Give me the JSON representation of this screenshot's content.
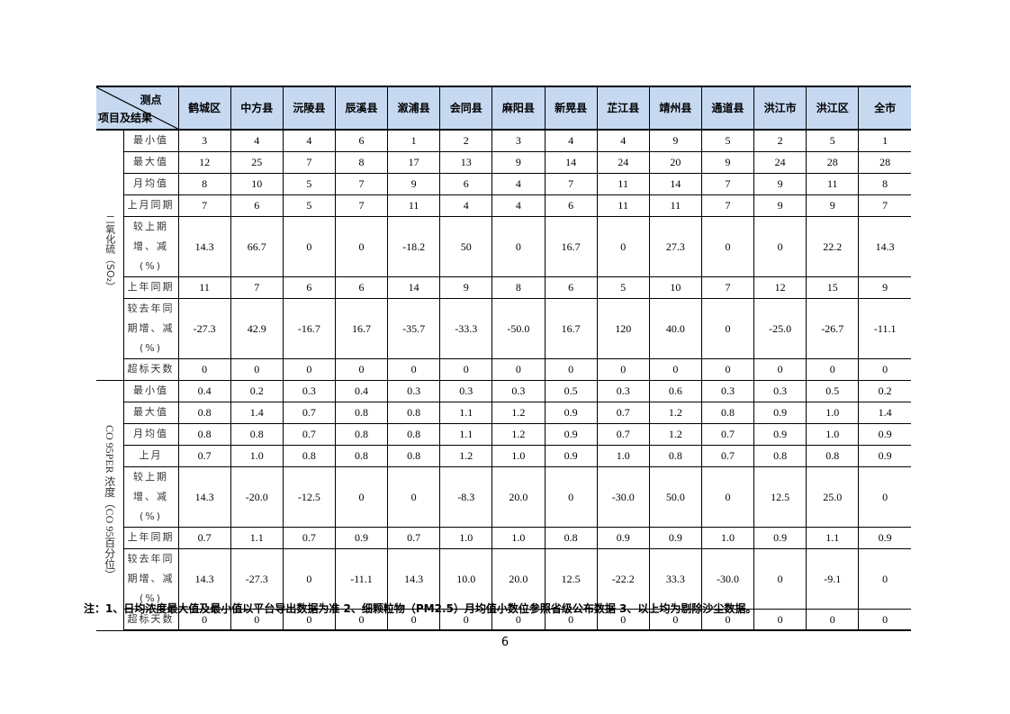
{
  "table": {
    "corner_top": "测点",
    "corner_bottom": "项目及结果",
    "columns": [
      "鹤城区",
      "中方县",
      "沅陵县",
      "辰溪县",
      "溆浦县",
      "会同县",
      "麻阳县",
      "新晃县",
      "芷江县",
      "靖州县",
      "通道县",
      "洪江市",
      "洪江区",
      "全市"
    ],
    "groups": [
      {
        "label": "二氧化硫（SO₂）",
        "rows": [
          {
            "item": "最小值",
            "values": [
              "3",
              "4",
              "4",
              "6",
              "1",
              "2",
              "3",
              "4",
              "4",
              "9",
              "5",
              "2",
              "5",
              "1"
            ]
          },
          {
            "item": "最大值",
            "values": [
              "12",
              "25",
              "7",
              "8",
              "17",
              "13",
              "9",
              "14",
              "24",
              "20",
              "9",
              "24",
              "28",
              "28"
            ]
          },
          {
            "item": "月均值",
            "values": [
              "8",
              "10",
              "5",
              "7",
              "9",
              "6",
              "4",
              "7",
              "11",
              "14",
              "7",
              "9",
              "11",
              "8"
            ]
          },
          {
            "item": "上月同期",
            "values": [
              "7",
              "6",
              "5",
              "7",
              "11",
              "4",
              "4",
              "6",
              "11",
              "11",
              "7",
              "9",
              "9",
              "7"
            ]
          },
          {
            "item": "较上期增、减(%)",
            "values": [
              "14.3",
              "66.7",
              "0",
              "0",
              "-18.2",
              "50",
              "0",
              "16.7",
              "0",
              "27.3",
              "0",
              "0",
              "22.2",
              "14.3"
            ]
          },
          {
            "item": "上年同期",
            "values": [
              "11",
              "7",
              "6",
              "6",
              "14",
              "9",
              "8",
              "6",
              "5",
              "10",
              "7",
              "12",
              "15",
              "9"
            ]
          },
          {
            "item": "较去年同期增、减(%)",
            "values": [
              "-27.3",
              "42.9",
              "-16.7",
              "16.7",
              "-35.7",
              "-33.3",
              "-50.0",
              "16.7",
              "120",
              "40.0",
              "0",
              "-25.0",
              "-26.7",
              "-11.1"
            ]
          },
          {
            "item": "超标天数",
            "values": [
              "0",
              "0",
              "0",
              "0",
              "0",
              "0",
              "0",
              "0",
              "0",
              "0",
              "0",
              "0",
              "0",
              "0"
            ]
          }
        ]
      },
      {
        "label": "CO 95PER 浓度（CO 95百分位）",
        "rows": [
          {
            "item": "最小值",
            "values": [
              "0.4",
              "0.2",
              "0.3",
              "0.4",
              "0.3",
              "0.3",
              "0.3",
              "0.5",
              "0.3",
              "0.6",
              "0.3",
              "0.3",
              "0.5",
              "0.2"
            ]
          },
          {
            "item": "最大值",
            "values": [
              "0.8",
              "1.4",
              "0.7",
              "0.8",
              "0.8",
              "1.1",
              "1.2",
              "0.9",
              "0.7",
              "1.2",
              "0.8",
              "0.9",
              "1.0",
              "1.4"
            ]
          },
          {
            "item": "月均值",
            "values": [
              "0.8",
              "0.8",
              "0.7",
              "0.8",
              "0.8",
              "1.1",
              "1.2",
              "0.9",
              "0.7",
              "1.2",
              "0.7",
              "0.9",
              "1.0",
              "0.9"
            ]
          },
          {
            "item": "上月",
            "values": [
              "0.7",
              "1.0",
              "0.8",
              "0.8",
              "0.8",
              "1.2",
              "1.0",
              "0.9",
              "1.0",
              "0.8",
              "0.7",
              "0.8",
              "0.8",
              "0.9"
            ]
          },
          {
            "item": "较上期增、减(%)",
            "values": [
              "14.3",
              "-20.0",
              "-12.5",
              "0",
              "0",
              "-8.3",
              "20.0",
              "0",
              "-30.0",
              "50.0",
              "0",
              "12.5",
              "25.0",
              "0"
            ]
          },
          {
            "item": "上年同期",
            "values": [
              "0.7",
              "1.1",
              "0.7",
              "0.9",
              "0.7",
              "1.0",
              "1.0",
              "0.8",
              "0.9",
              "0.9",
              "1.0",
              "0.9",
              "1.1",
              "0.9"
            ]
          },
          {
            "item": "较去年同期增、减(%)",
            "values": [
              "14.3",
              "-27.3",
              "0",
              "-11.1",
              "14.3",
              "10.0",
              "20.0",
              "12.5",
              "-22.2",
              "33.3",
              "-30.0",
              "0",
              "-9.1",
              "0"
            ]
          },
          {
            "item": "超标天数",
            "values": [
              "0",
              "0",
              "0",
              "0",
              "0",
              "0",
              "0",
              "0",
              "0",
              "0",
              "0",
              "0",
              "0",
              "0"
            ]
          }
        ]
      }
    ]
  },
  "note": "注：1、日均浓度最大值及最小值以平台导出数据为准 2、细颗粒物（PM2.5）月均值小数位参照省级公布数据 3、以上均为剔除沙尘数据。",
  "page_number": "6",
  "colors": {
    "header_bg": "#c6d9f1"
  }
}
